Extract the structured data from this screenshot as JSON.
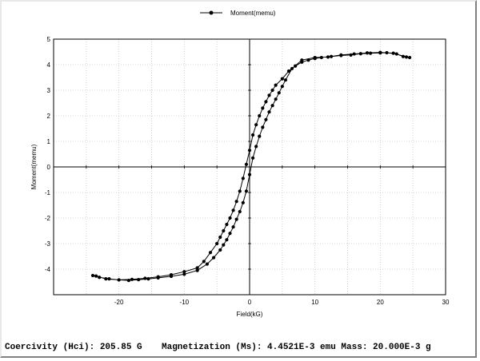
{
  "chart_data": {
    "type": "line",
    "xlabel": "Field(kG)",
    "ylabel": "Moment(memu)",
    "xlim": [
      -30,
      30
    ],
    "ylim": [
      -5,
      5
    ],
    "x_ticks": [
      -20,
      -10,
      0,
      10,
      20,
      30
    ],
    "y_ticks": [
      -4,
      -3,
      -2,
      -1,
      0,
      1,
      2,
      3,
      4,
      5
    ],
    "grid": true,
    "legend_placement": "top-center",
    "series": [
      {
        "name": "Moment(memu)",
        "color": "#000000",
        "marker": "circle",
        "x": [
          24.5,
          23.5,
          22.5,
          21,
          20,
          18.5,
          17,
          15.5,
          14,
          12.5,
          11,
          10,
          9,
          8,
          7,
          6,
          5,
          4,
          3.5,
          3,
          2.5,
          2,
          1.5,
          1,
          0.5,
          0,
          -0.5,
          -1,
          -1.5,
          -2,
          -2.5,
          -3,
          -3.5,
          -4,
          -4.5,
          -5,
          -6,
          -7,
          -8,
          -10,
          -12,
          -14,
          -16,
          -18,
          -20,
          -22,
          -23.5,
          -24,
          -23,
          -21.5,
          -20,
          -18.5,
          -17,
          -15.5,
          -14,
          -12,
          -10,
          -8,
          -6.5,
          -5.5,
          -4.5,
          -4,
          -3.5,
          -3,
          -2.5,
          -2,
          -1.5,
          -1,
          -0.5,
          0,
          0.5,
          1,
          1.5,
          2,
          2.5,
          3,
          3.5,
          4,
          4.5,
          5,
          5.5,
          6.5,
          8,
          10,
          12,
          14,
          16,
          18,
          20,
          22,
          24
        ],
        "values": [
          4.28,
          4.32,
          4.42,
          4.47,
          4.46,
          4.45,
          4.43,
          4.38,
          4.36,
          4.32,
          4.28,
          4.24,
          4.18,
          4.1,
          3.95,
          3.75,
          3.45,
          3.2,
          3.0,
          2.8,
          2.55,
          2.3,
          2.0,
          1.65,
          1.25,
          0.65,
          0.1,
          -0.45,
          -0.95,
          -1.35,
          -1.7,
          -2.0,
          -2.25,
          -2.5,
          -2.75,
          -3.0,
          -3.35,
          -3.7,
          -3.95,
          -4.1,
          -4.22,
          -4.3,
          -4.36,
          -4.4,
          -4.42,
          -4.38,
          -4.27,
          -4.25,
          -4.32,
          -4.38,
          -4.42,
          -4.44,
          -4.41,
          -4.38,
          -4.34,
          -4.28,
          -4.2,
          -4.05,
          -3.8,
          -3.55,
          -3.25,
          -3.05,
          -2.85,
          -2.6,
          -2.35,
          -2.05,
          -1.75,
          -1.4,
          -0.95,
          -0.3,
          0.35,
          0.8,
          1.2,
          1.55,
          1.85,
          2.15,
          2.4,
          2.65,
          2.9,
          3.15,
          3.4,
          3.85,
          4.18,
          4.28,
          4.3,
          4.38,
          4.42,
          4.46,
          4.48,
          4.45,
          4.3
        ]
      }
    ]
  },
  "footer": {
    "coercivity": "Coercivity (Hci): 205.85 G",
    "magnetization": "Magnetization (Ms): 4.4521E-3 emu Mass: 20.000E-3 g"
  }
}
